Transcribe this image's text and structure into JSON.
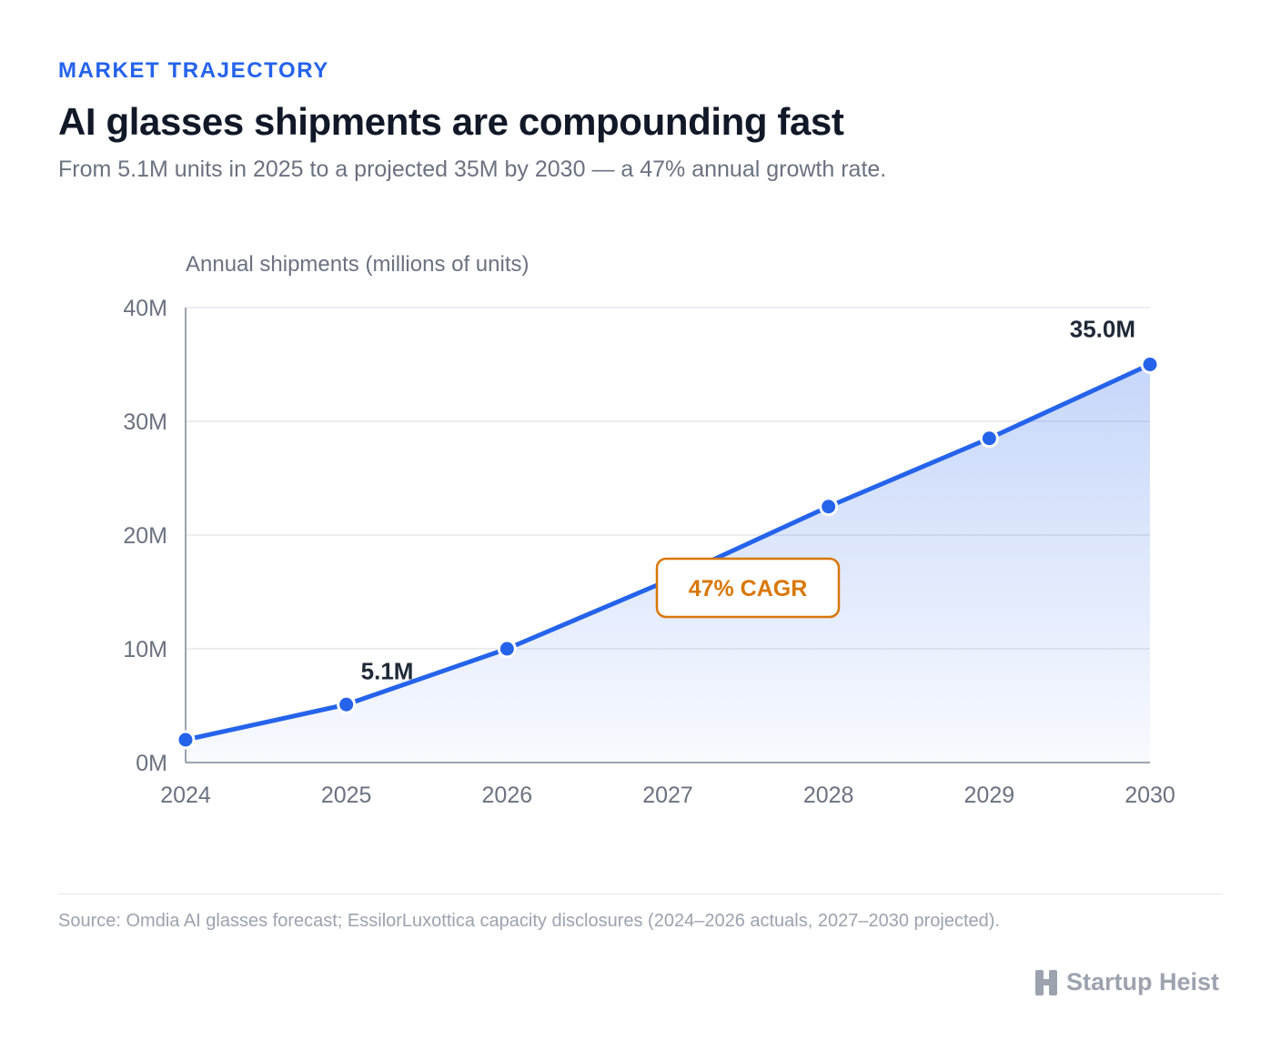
{
  "header": {
    "kicker": "MARKET TRAJECTORY",
    "title": "AI glasses shipments are compounding fast",
    "subtitle": "From 5.1M units in 2025 to a projected 35M by 2030 — a 47% annual growth rate."
  },
  "chart_data": {
    "type": "area",
    "ylabel": "Annual shipments (millions of units)",
    "xlabel": "",
    "categories": [
      "2024",
      "2025",
      "2026",
      "2027",
      "2028",
      "2029",
      "2030"
    ],
    "series": [
      {
        "values": [
          2.0,
          5.1,
          10.0,
          16.0,
          22.5,
          28.5,
          35.0
        ]
      }
    ],
    "ylim": [
      0,
      40
    ],
    "yticks": [
      0,
      10,
      20,
      30,
      40
    ],
    "ytick_labels": [
      "0M",
      "10M",
      "20M",
      "30M",
      "40M"
    ],
    "markers_at": [
      "2024",
      "2025",
      "2026",
      "2028",
      "2029",
      "2030"
    ],
    "data_labels": [
      {
        "category": "2025",
        "text": "5.1M"
      },
      {
        "category": "2030",
        "text": "35.0M"
      }
    ],
    "annotation": "47% CAGR",
    "grid": true,
    "colors": {
      "line": "#2563eb",
      "annotation": "#d97706",
      "grid": "#e5e7eb",
      "axis": "#9ca3af"
    }
  },
  "footer": {
    "source": "Source: Omdia AI glasses forecast; EssilorLuxottica capacity disclosures (2024–2026 actuals, 2027–2030 projected).",
    "brand": "Startup Heist",
    "brand_icon": "building-icon"
  }
}
